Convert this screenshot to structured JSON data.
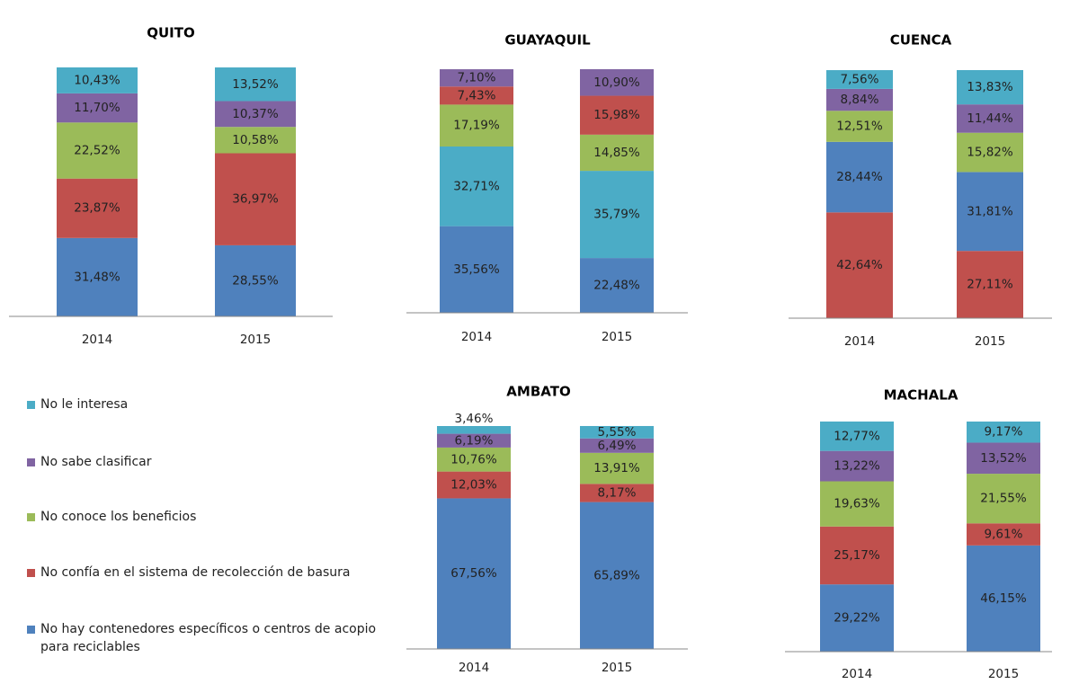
{
  "legend": {
    "items": [
      {
        "name": "No le interesa",
        "color": "#4bacc6"
      },
      {
        "name": "No sabe clasificar",
        "color": "#8064a2"
      },
      {
        "name": "No conoce los beneficios",
        "color": "#9bbb59"
      },
      {
        "name": "No confía en el sistema de recolección de basura",
        "color": "#c0504d"
      },
      {
        "name": "No hay contenedores específicos o centros de acopio para reciclables",
        "color": "#4f81bd"
      }
    ]
  },
  "chart_data": [
    {
      "type": "bar",
      "stacked": true,
      "title": "QUITO",
      "categories": [
        "2014",
        "2015"
      ],
      "ylim": [
        0,
        100
      ],
      "series": [
        {
          "color": "#4f81bd",
          "values": [
            31.48,
            28.55
          ],
          "value_labels": [
            "31,48%",
            "28,55%"
          ]
        },
        {
          "color": "#c0504d",
          "values": [
            23.87,
            36.97
          ],
          "value_labels": [
            "23,87%",
            "36,97%"
          ]
        },
        {
          "color": "#9bbb59",
          "values": [
            22.52,
            10.58
          ],
          "value_labels": [
            "22,52%",
            "10,58%"
          ]
        },
        {
          "color": "#8064a2",
          "values": [
            11.7,
            10.37
          ],
          "value_labels": [
            "11,70%",
            "10,37%"
          ]
        },
        {
          "color": "#4bacc6",
          "values": [
            10.43,
            13.52
          ],
          "value_labels": [
            "10,43%",
            "13,52%"
          ]
        }
      ]
    },
    {
      "type": "bar",
      "stacked": true,
      "title": "GUAYAQUIL",
      "categories": [
        "2014",
        "2015"
      ],
      "ylim": [
        0,
        100
      ],
      "series": [
        {
          "color": "#4f81bd",
          "values": [
            35.56,
            22.48
          ],
          "value_labels": [
            "35,56%",
            "22,48%"
          ]
        },
        {
          "color": "#4bacc6",
          "values": [
            32.71,
            35.79
          ],
          "value_labels": [
            "32,71%",
            "35,79%"
          ]
        },
        {
          "color": "#9bbb59",
          "values": [
            17.19,
            14.85
          ],
          "value_labels": [
            "17,19%",
            "14,85%"
          ]
        },
        {
          "color": "#c0504d",
          "values": [
            7.43,
            15.98
          ],
          "value_labels": [
            "7,43%",
            "15,98%"
          ]
        },
        {
          "color": "#8064a2",
          "values": [
            7.1,
            10.9
          ],
          "value_labels": [
            "7,10%",
            "10,90%"
          ]
        }
      ]
    },
    {
      "type": "bar",
      "stacked": true,
      "title": "CUENCA",
      "categories": [
        "2014",
        "2015"
      ],
      "ylim": [
        0,
        100
      ],
      "series": [
        {
          "color": "#c0504d",
          "values": [
            42.64,
            27.11
          ],
          "value_labels": [
            "42,64%",
            "27,11%"
          ]
        },
        {
          "color": "#4f81bd",
          "values": [
            28.44,
            31.81
          ],
          "value_labels": [
            "28,44%",
            "31,81%"
          ]
        },
        {
          "color": "#9bbb59",
          "values": [
            12.51,
            15.82
          ],
          "value_labels": [
            "12,51%",
            "15,82%"
          ]
        },
        {
          "color": "#8064a2",
          "values": [
            8.84,
            11.44
          ],
          "value_labels": [
            "8,84%",
            "11,44%"
          ]
        },
        {
          "color": "#4bacc6",
          "values": [
            7.56,
            13.83
          ],
          "value_labels": [
            "7,56%",
            "13,83%"
          ]
        }
      ]
    },
    {
      "type": "bar",
      "stacked": true,
      "title": "AMBATO",
      "categories": [
        "2014",
        "2015"
      ],
      "ylim": [
        0,
        100
      ],
      "series": [
        {
          "color": "#4f81bd",
          "values": [
            67.56,
            65.89
          ],
          "value_labels": [
            "67,56%",
            "65,89%"
          ]
        },
        {
          "color": "#c0504d",
          "values": [
            12.03,
            8.17
          ],
          "value_labels": [
            "12,03%",
            "8,17%"
          ]
        },
        {
          "color": "#9bbb59",
          "values": [
            10.76,
            13.91
          ],
          "value_labels": [
            "10,76%",
            "13,91%"
          ]
        },
        {
          "color": "#8064a2",
          "values": [
            6.19,
            6.49
          ],
          "value_labels": [
            "6,19%",
            "6,49%"
          ]
        },
        {
          "color": "#4bacc6",
          "values": [
            3.46,
            5.55
          ],
          "value_labels": [
            "3,46%",
            "5,55%"
          ]
        }
      ]
    },
    {
      "type": "bar",
      "stacked": true,
      "title": "MACHALA",
      "categories": [
        "2014",
        "2015"
      ],
      "ylim": [
        0,
        100
      ],
      "series": [
        {
          "color": "#4f81bd",
          "values": [
            29.22,
            46.15
          ],
          "value_labels": [
            "29,22%",
            "46,15%"
          ]
        },
        {
          "color": "#c0504d",
          "values": [
            25.17,
            9.61
          ],
          "value_labels": [
            "25,17%",
            "9,61%"
          ]
        },
        {
          "color": "#9bbb59",
          "values": [
            19.63,
            21.55
          ],
          "value_labels": [
            "19,63%",
            "21,55%"
          ]
        },
        {
          "color": "#8064a2",
          "values": [
            13.22,
            13.52
          ],
          "value_labels": [
            "13,22%",
            "13,52%"
          ]
        },
        {
          "color": "#4bacc6",
          "values": [
            12.77,
            9.17
          ],
          "value_labels": [
            "12,77%",
            "9,17%"
          ]
        }
      ]
    }
  ]
}
